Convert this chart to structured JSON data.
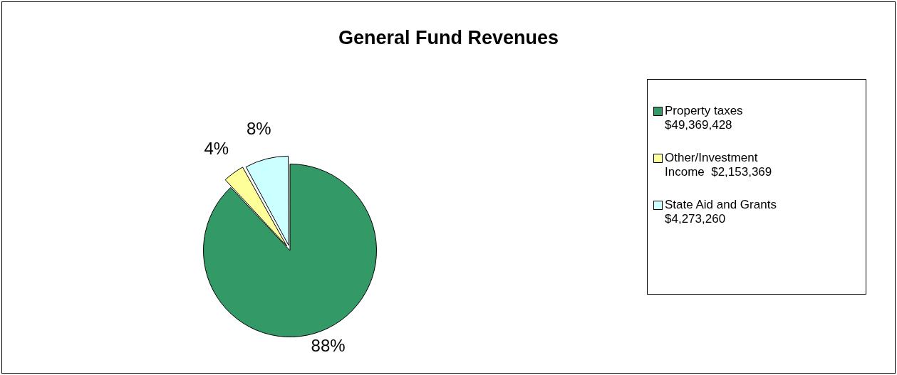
{
  "chart_data": {
    "type": "pie",
    "title": "General Fund Revenues",
    "categories": [
      "Property taxes $49,369,428",
      "Other/Investment Income  $2,153,369",
      "State Aid and Grants $4,273,260"
    ],
    "values": [
      88,
      4,
      8
    ],
    "colors": [
      "#339966",
      "#ffff99",
      "#ccffff"
    ],
    "value_labels": [
      "88%",
      "4%",
      "8%"
    ],
    "legend": "right"
  }
}
